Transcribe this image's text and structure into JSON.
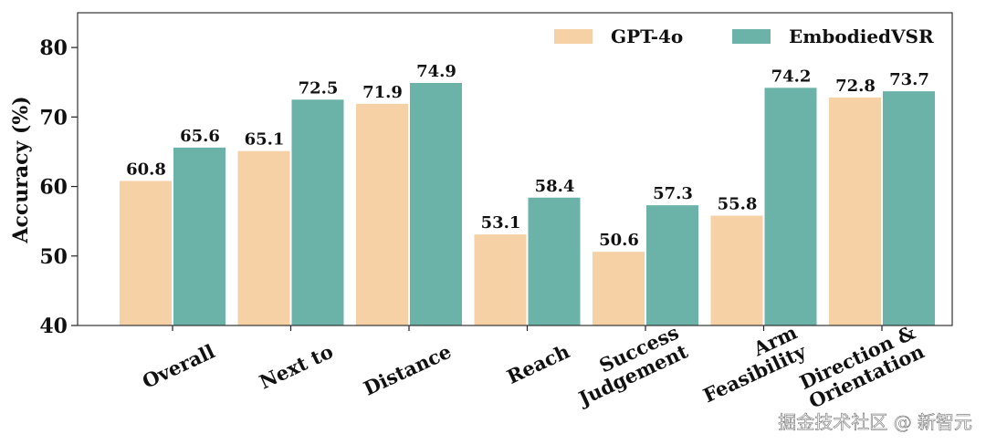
{
  "chart_data": {
    "type": "bar",
    "y_label": "Accuracy (%)",
    "categories": [
      "Overall",
      "Next to",
      "Distance",
      "Reach",
      "Success\nJudgement",
      "Arm\nFeasibility",
      "Direction &\nOrientation"
    ],
    "series": [
      {
        "name": "GPT-4o",
        "color": "#f5d1a5",
        "values": [
          60.8,
          65.1,
          71.9,
          53.1,
          50.6,
          55.8,
          72.8
        ]
      },
      {
        "name": "EmbodiedVSR",
        "color": "#6bb3a9",
        "values": [
          65.6,
          72.5,
          74.9,
          58.4,
          57.3,
          74.2,
          73.7
        ]
      }
    ],
    "ylim": [
      40,
      85
    ],
    "yticks": [
      40,
      50,
      60,
      70,
      80
    ],
    "legend": "upper right",
    "watermark": "掘金技术社区 @ 新智元"
  }
}
